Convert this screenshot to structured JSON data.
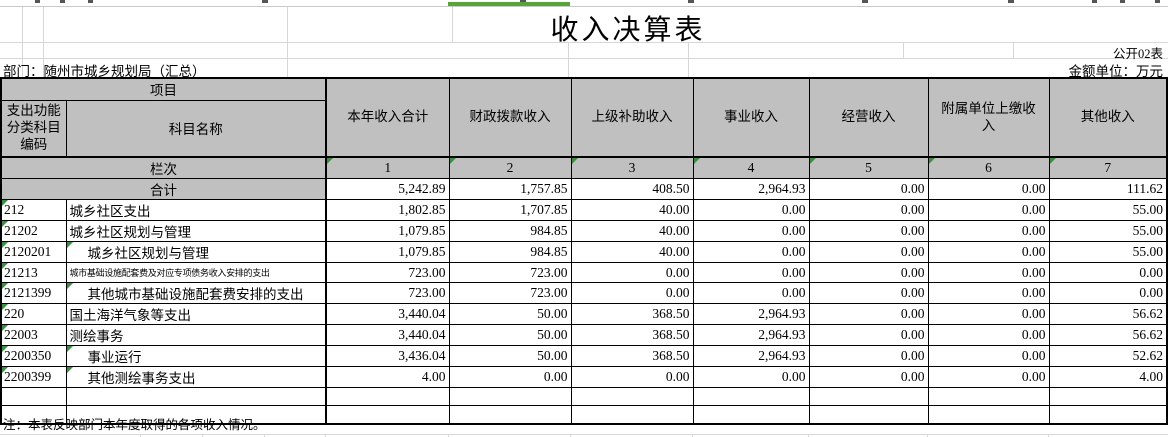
{
  "page": {
    "title": "收入决算表",
    "table_code": "公开02表",
    "department_label": "部门：随州市城乡规划局（汇总）",
    "unit_label": "金额单位：万元",
    "note": "注：本表反映部门本年度取得的各项收入情况。"
  },
  "table": {
    "header": {
      "project": "项目",
      "code_col": "支出功能分类科目编码",
      "name_col": "科目名称",
      "columns": [
        "本年收入合计",
        "财政拨款收入",
        "上级补助收入",
        "事业收入",
        "经营收入",
        "附属单位上缴收入",
        "其他收入"
      ],
      "row_label": "栏次",
      "col_numbers": [
        "1",
        "2",
        "3",
        "4",
        "5",
        "6",
        "7"
      ]
    },
    "total_row": {
      "label": "合计",
      "values": [
        "5,242.89",
        "1,757.85",
        "408.50",
        "2,964.93",
        "0.00",
        "0.00",
        "111.62"
      ]
    },
    "rows": [
      {
        "code": "212",
        "name": "城乡社区支出",
        "indent": false,
        "small": false,
        "name_flag": false,
        "values": [
          "1,802.85",
          "1,707.85",
          "40.00",
          "0.00",
          "0.00",
          "0.00",
          "55.00"
        ]
      },
      {
        "code": "21202",
        "name": "城乡社区规划与管理",
        "indent": false,
        "small": false,
        "name_flag": false,
        "values": [
          "1,079.85",
          "984.85",
          "40.00",
          "0.00",
          "0.00",
          "0.00",
          "55.00"
        ]
      },
      {
        "code": "2120201",
        "name": "城乡社区规划与管理",
        "indent": true,
        "small": false,
        "name_flag": true,
        "values": [
          "1,079.85",
          "984.85",
          "40.00",
          "0.00",
          "0.00",
          "0.00",
          "55.00"
        ]
      },
      {
        "code": "21213",
        "name": "城市基础设施配套费及对应专项债务收入安排的支出",
        "indent": false,
        "small": true,
        "name_flag": false,
        "values": [
          "723.00",
          "723.00",
          "0.00",
          "0.00",
          "0.00",
          "0.00",
          "0.00"
        ]
      },
      {
        "code": "2121399",
        "name": "其他城市基础设施配套费安排的支出",
        "indent": true,
        "small": false,
        "name_flag": true,
        "values": [
          "723.00",
          "723.00",
          "0.00",
          "0.00",
          "0.00",
          "0.00",
          "0.00"
        ]
      },
      {
        "code": "220",
        "name": "国土海洋气象等支出",
        "indent": false,
        "small": false,
        "name_flag": false,
        "values": [
          "3,440.04",
          "50.00",
          "368.50",
          "2,964.93",
          "0.00",
          "0.00",
          "56.62"
        ]
      },
      {
        "code": "22003",
        "name": "测绘事务",
        "indent": false,
        "small": false,
        "name_flag": false,
        "values": [
          "3,440.04",
          "50.00",
          "368.50",
          "2,964.93",
          "0.00",
          "0.00",
          "56.62"
        ]
      },
      {
        "code": "2200350",
        "name": "事业运行",
        "indent": true,
        "small": false,
        "name_flag": true,
        "values": [
          "3,436.04",
          "50.00",
          "368.50",
          "2,964.93",
          "0.00",
          "0.00",
          "52.62"
        ]
      },
      {
        "code": "2200399",
        "name": "其他测绘事务支出",
        "indent": true,
        "small": false,
        "name_flag": true,
        "values": [
          "4.00",
          "0.00",
          "0.00",
          "0.00",
          "0.00",
          "0.00",
          "4.00"
        ]
      },
      {
        "code": "",
        "name": "",
        "indent": false,
        "small": false,
        "name_flag": false,
        "values": [
          "",
          "",
          "",
          "",
          "",
          "",
          ""
        ]
      },
      {
        "code": "",
        "name": "",
        "indent": false,
        "small": false,
        "name_flag": false,
        "values": [
          "",
          "",
          "",
          "",
          "",
          "",
          ""
        ]
      }
    ]
  },
  "colors": {
    "header_gray": "#c0c0c0",
    "selection_green": "#56a537",
    "indicator_green": "#3e8e41"
  }
}
